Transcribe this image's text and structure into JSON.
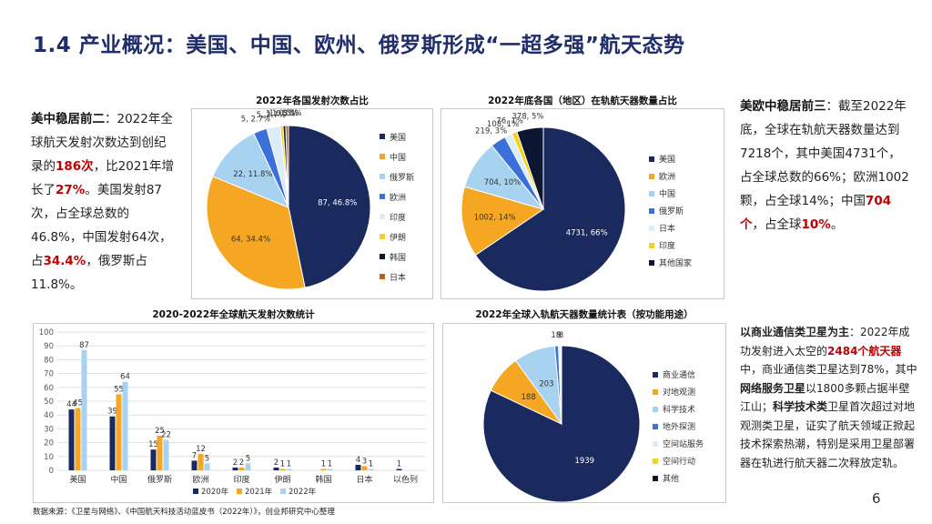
{
  "title": "1.4 产业概况：美国、中国、欧州、俄罗斯形成“一超多强”航天态势",
  "left_text": {
    "lead": "美中稳居前二",
    "t1": "：2022年全球航天发射次数达到创纪录的",
    "h1": "186次",
    "t2": "，比2021年增长了",
    "h2": "27%",
    "t3": "。美国发射87次，占全球总数的46.8%，中国发射64次，占",
    "h3": "34.4%",
    "t4": "，俄罗斯占11.8%。"
  },
  "right_text": {
    "lead": "美欧中稳居前三",
    "t1": "：截至2022年底，全球在轨航天器数量达到7218个，其中美国4731个，占全球总数的66%；欧洲1002颗，占全球14%；中国",
    "h1": "704个",
    "t2": "，占全球",
    "h2": "10%",
    "t3": "。"
  },
  "right_text2": {
    "lead": "以商业通信类卫星为主",
    "t1": "：2022年成功发射进入太空的",
    "h1": "2484个航天器",
    "t2": "中，商业通信类卫星达到78%，其中",
    "b1": "网络服务卫星",
    "t3": "以1800多颗占据半壁江山；",
    "b2": "科学技术类",
    "t4": "卫星首次超过对地观测类卫星，证实了航天领域正掀起技术探索热潮，特别是采用卫星部署器在轨进行航天器二次释放定轨。"
  },
  "source": "数据来源：《卫星与网络》、《中国航天科技活动蓝皮书（2022年）》，创业邦研究中心整理",
  "page_number": "6",
  "chart_data": [
    {
      "type": "pie",
      "title": "2022年各国发射次数占比",
      "categories": [
        "美国",
        "中国",
        "俄罗斯",
        "欧洲",
        "印度",
        "伊朗",
        "韩国",
        "日本"
      ],
      "values": [
        87,
        64,
        22,
        5,
        5,
        1,
        1,
        1
      ],
      "labels": [
        "87, 46.8%",
        "64, 34.4%",
        "22, 11.8%",
        "5, 2.7%",
        "5, 2.7%",
        "1, 0.5%",
        "1, 0.5%",
        "1, 0.5%"
      ],
      "colors": [
        "#1b2a5e",
        "#f5a623",
        "#a8d3f0",
        "#3b6fd9",
        "#dcedf9",
        "#f7d21c",
        "#0d1633",
        "#b8621b"
      ],
      "legend": "right"
    },
    {
      "type": "pie",
      "title": "2022年底各国（地区）在轨航天器数量占比",
      "categories": [
        "美国",
        "欧洲",
        "中国",
        "俄罗斯",
        "日本",
        "印度",
        "其他国家"
      ],
      "values": [
        4731,
        1002,
        704,
        219,
        108,
        76,
        378
      ],
      "labels": [
        "4731, 66%",
        "1002, 14%",
        "704, 10%",
        "219, 3%",
        "108, 1%",
        "76, 1%",
        "378, 5%"
      ],
      "colors": [
        "#1b2a5e",
        "#f5a623",
        "#a8d3f0",
        "#3b6fd9",
        "#dcedf9",
        "#f7d21c",
        "#0d1633"
      ],
      "legend": "right"
    },
    {
      "type": "bar",
      "title": "2020-2022年全球航天发射次数统计",
      "categories": [
        "美国",
        "中国",
        "俄罗斯",
        "欧洲",
        "印度",
        "伊朗",
        "韩国",
        "日本",
        "以色列"
      ],
      "series": [
        {
          "name": "2020年",
          "color": "#1b2a5e",
          "values": [
            44,
            39,
            15,
            7,
            2,
            2,
            0,
            4,
            1
          ]
        },
        {
          "name": "2021年",
          "color": "#f5a623",
          "values": [
            45,
            55,
            25,
            12,
            2,
            1,
            1,
            3,
            0
          ]
        },
        {
          "name": "2022年",
          "color": "#a8d3f0",
          "values": [
            87,
            64,
            22,
            5,
            5,
            1,
            1,
            1,
            0
          ]
        }
      ],
      "labels": [
        [
          "44",
          "39",
          "15",
          "7",
          "2",
          "2",
          "",
          "4",
          "1"
        ],
        [
          "45",
          "55",
          "25",
          "12",
          "2",
          "1",
          "1",
          "3",
          ""
        ],
        [
          "87",
          "64",
          "22",
          "5",
          "5",
          "1",
          "1",
          "1",
          ""
        ]
      ],
      "ylim": [
        0,
        100
      ],
      "yticks": [
        0,
        10,
        20,
        30,
        40,
        50,
        60,
        70,
        80,
        90,
        100
      ],
      "legend": "bottom"
    },
    {
      "type": "pie",
      "title": "2022年全球入轨航天器数量统计表（按功能用途）",
      "categories": [
        "商业通信",
        "对地观测",
        "科学技术",
        "地外探测",
        "空间站服务",
        "空间行动",
        "其他"
      ],
      "values": [
        1939,
        188,
        203,
        18,
        9,
        3,
        3
      ],
      "labels": [
        "1939",
        "188",
        "203",
        "18",
        "9",
        "",
        "3"
      ],
      "colors": [
        "#1b2a5e",
        "#f5a623",
        "#a8d3f0",
        "#3b6fd9",
        "#dcedf9",
        "#f7d21c",
        "#0d1633"
      ],
      "legend": "right"
    }
  ]
}
